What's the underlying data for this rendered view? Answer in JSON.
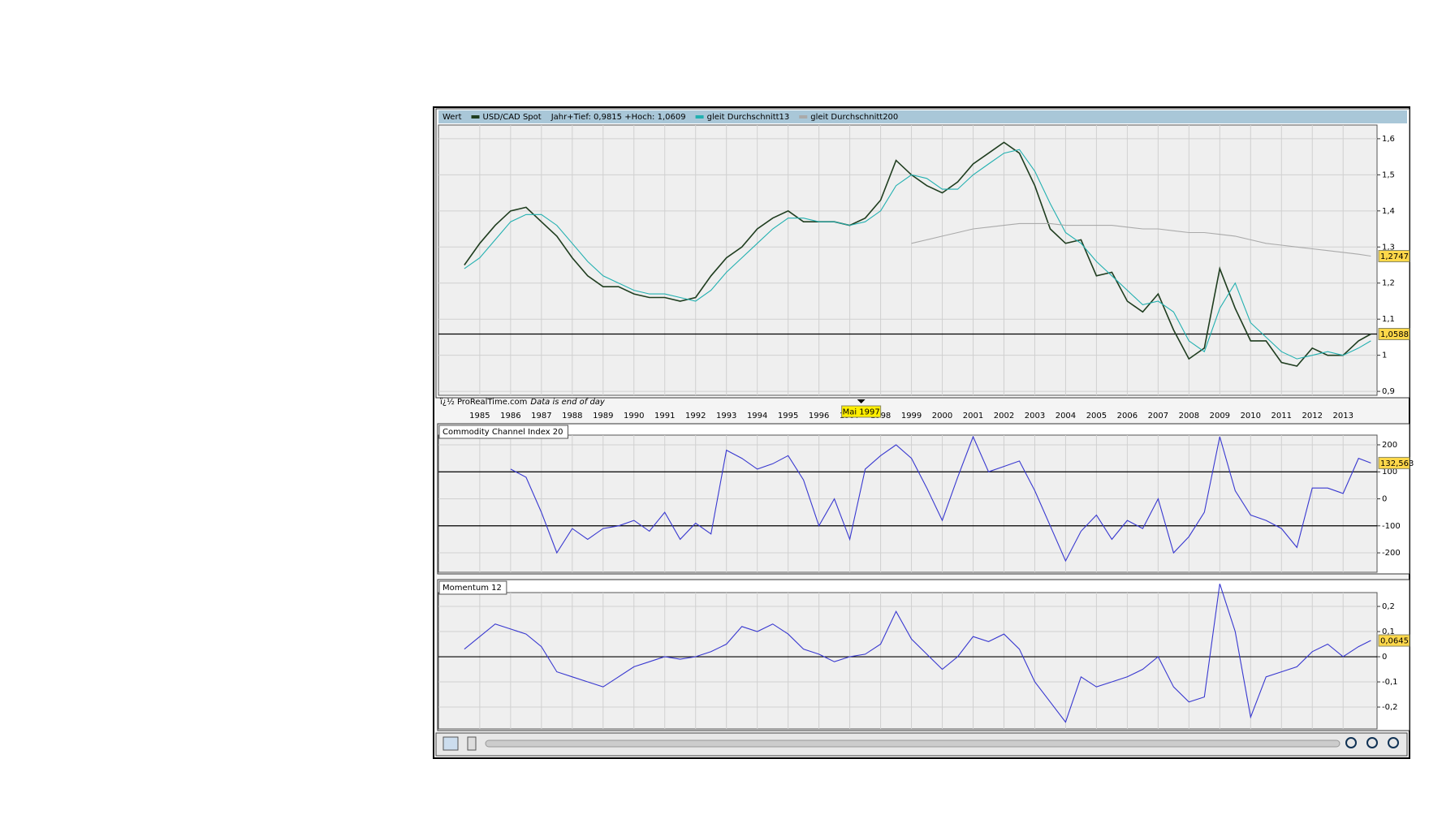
{
  "chart_data": [
    {
      "type": "line",
      "title": "Wert",
      "subtitle": "Jahr+Tief: 0,9815 +Hoch: 1,0609",
      "source": "ï¿½ ProRealTime.com",
      "note": "Data is end of day",
      "x": [
        1984.5,
        1985,
        1985.5,
        1986,
        1986.5,
        1987,
        1987.5,
        1988,
        1988.5,
        1989,
        1989.5,
        1990,
        1990.5,
        1991,
        1991.5,
        1992,
        1992.5,
        1993,
        1993.5,
        1994,
        1994.5,
        1995,
        1995.5,
        1996,
        1996.5,
        1997,
        1997.5,
        1998,
        1998.5,
        1999,
        1999.5,
        2000,
        2000.5,
        2001,
        2001.5,
        2002,
        2002.5,
        2003,
        2003.5,
        2004,
        2004.5,
        2005,
        2005.5,
        2006,
        2006.5,
        2007,
        2007.5,
        2008,
        2008.5,
        2009,
        2009.5,
        2010,
        2010.5,
        2011,
        2011.5,
        2012,
        2012.5,
        2013,
        2013.5,
        2013.9
      ],
      "series": [
        {
          "name": "USD/CAD Spot",
          "color": "#1f3d1f",
          "values": [
            1.25,
            1.31,
            1.36,
            1.4,
            1.41,
            1.37,
            1.33,
            1.27,
            1.22,
            1.19,
            1.19,
            1.17,
            1.16,
            1.16,
            1.15,
            1.16,
            1.22,
            1.27,
            1.3,
            1.35,
            1.38,
            1.4,
            1.37,
            1.37,
            1.37,
            1.36,
            1.38,
            1.43,
            1.54,
            1.5,
            1.47,
            1.45,
            1.48,
            1.53,
            1.56,
            1.59,
            1.56,
            1.47,
            1.35,
            1.31,
            1.32,
            1.22,
            1.23,
            1.15,
            1.12,
            1.17,
            1.07,
            0.99,
            1.02,
            1.24,
            1.13,
            1.04,
            1.04,
            0.98,
            0.97,
            1.02,
            1.0,
            1.0,
            1.04,
            1.0588
          ]
        },
        {
          "name": "gleit Durchschnitt13",
          "color": "#22b0b0",
          "values": [
            1.24,
            1.27,
            1.32,
            1.37,
            1.39,
            1.39,
            1.36,
            1.31,
            1.26,
            1.22,
            1.2,
            1.18,
            1.17,
            1.17,
            1.16,
            1.15,
            1.18,
            1.23,
            1.27,
            1.31,
            1.35,
            1.38,
            1.38,
            1.37,
            1.37,
            1.36,
            1.37,
            1.4,
            1.47,
            1.5,
            1.49,
            1.46,
            1.46,
            1.5,
            1.53,
            1.56,
            1.57,
            1.51,
            1.42,
            1.34,
            1.31,
            1.26,
            1.22,
            1.18,
            1.14,
            1.15,
            1.12,
            1.04,
            1.01,
            1.13,
            1.2,
            1.09,
            1.05,
            1.01,
            0.99,
            1.0,
            1.01,
            1.0,
            1.02,
            1.04
          ]
        },
        {
          "name": "gleit Durchschnitt200",
          "color": "#aaaaaa",
          "values": [
            null,
            null,
            null,
            null,
            null,
            null,
            null,
            null,
            null,
            null,
            null,
            null,
            null,
            null,
            null,
            null,
            null,
            null,
            null,
            null,
            null,
            null,
            null,
            null,
            null,
            null,
            null,
            null,
            null,
            1.31,
            1.32,
            1.33,
            1.34,
            1.35,
            1.355,
            1.36,
            1.365,
            1.365,
            1.365,
            1.36,
            1.36,
            1.36,
            1.36,
            1.355,
            1.35,
            1.35,
            1.345,
            1.34,
            1.34,
            1.335,
            1.33,
            1.32,
            1.31,
            1.305,
            1.3,
            1.295,
            1.29,
            1.285,
            1.28,
            1.2747
          ]
        }
      ],
      "xlim": [
        1983.66,
        2014.1
      ],
      "xticks": [
        1985,
        1986,
        1987,
        1988,
        1989,
        1990,
        1991,
        1992,
        1993,
        1994,
        1995,
        1996,
        1997,
        1998,
        1999,
        2000,
        2001,
        2002,
        2003,
        2004,
        2005,
        2006,
        2007,
        2008,
        2009,
        2010,
        2011,
        2012,
        2013
      ],
      "ylim": [
        0.889,
        1.638
      ],
      "yticks": [
        {
          "value": 0.9,
          "label": "0,9"
        },
        {
          "value": 1,
          "label": "1"
        },
        {
          "value": 1.1,
          "label": "1,1"
        },
        {
          "value": 1.2,
          "label": "1,2"
        },
        {
          "value": 1.3,
          "label": "1,3"
        },
        {
          "value": 1.4,
          "label": "1,4"
        },
        {
          "value": 1.5,
          "label": "1,5"
        },
        {
          "value": 1.6,
          "label": "1,6"
        }
      ],
      "hlines": [
        1.0588
      ],
      "tags": [
        {
          "value": 1.2747,
          "label": "1,2747"
        },
        {
          "value": 1.0588,
          "label": "1,0588"
        }
      ],
      "marker": {
        "x": 1997.37,
        "label": "Mai 1997"
      },
      "grid": true
    },
    {
      "type": "line",
      "title": "Commodity Channel Index 20",
      "x": [
        1984.5,
        1985,
        1985.5,
        1986,
        1986.5,
        1987,
        1987.5,
        1988,
        1988.5,
        1989,
        1989.5,
        1990,
        1990.5,
        1991,
        1991.5,
        1992,
        1992.5,
        1993,
        1993.5,
        1994,
        1994.5,
        1995,
        1995.5,
        1996,
        1996.5,
        1997,
        1997.5,
        1998,
        1998.5,
        1999,
        1999.5,
        2000,
        2000.5,
        2001,
        2001.5,
        2002,
        2002.5,
        2003,
        2003.5,
        2004,
        2004.5,
        2005,
        2005.5,
        2006,
        2006.5,
        2007,
        2007.5,
        2008,
        2008.5,
        2009,
        2009.5,
        2010,
        2010.5,
        2011,
        2011.5,
        2012,
        2012.5,
        2013,
        2013.5,
        2013.9
      ],
      "series": [
        {
          "name": "Commodity Channel Index 20",
          "color": "#3838d0",
          "values": [
            null,
            null,
            null,
            110,
            80,
            -50,
            -200,
            -110,
            -150,
            -110,
            -100,
            -80,
            -120,
            -50,
            -150,
            -90,
            -130,
            180,
            150,
            110,
            130,
            160,
            70,
            -100,
            0,
            -150,
            110,
            160,
            200,
            150,
            40,
            -80,
            80,
            230,
            100,
            120,
            140,
            30,
            -100,
            -230,
            -120,
            -60,
            -150,
            -80,
            -110,
            0,
            -200,
            -140,
            -50,
            230,
            30,
            -60,
            -80,
            -110,
            -180,
            40,
            40,
            20,
            150,
            132.563
          ]
        }
      ],
      "xlim": [
        1983.66,
        2014.1
      ],
      "ylim": [
        -272,
        236
      ],
      "yticks": [
        -200,
        -100,
        0,
        100,
        200
      ],
      "hlines": [
        100,
        -100
      ],
      "tags": [
        {
          "value": 132.563,
          "label": "132,563"
        }
      ],
      "grid": true
    },
    {
      "type": "line",
      "title": "Momentum 12",
      "x": [
        1984.5,
        1985,
        1985.5,
        1986,
        1986.5,
        1987,
        1987.5,
        1988,
        1988.5,
        1989,
        1989.5,
        1990,
        1990.5,
        1991,
        1991.5,
        1992,
        1992.5,
        1993,
        1993.5,
        1994,
        1994.5,
        1995,
        1995.5,
        1996,
        1996.5,
        1997,
        1997.5,
        1998,
        1998.5,
        1999,
        1999.5,
        2000,
        2000.5,
        2001,
        2001.5,
        2002,
        2002.5,
        2003,
        2003.5,
        2004,
        2004.5,
        2005,
        2005.5,
        2006,
        2006.5,
        2007,
        2007.5,
        2008,
        2008.5,
        2009,
        2009.5,
        2010,
        2010.5,
        2011,
        2011.5,
        2012,
        2012.5,
        2013,
        2013.5,
        2013.9
      ],
      "series": [
        {
          "name": "Momentum 12",
          "color": "#3838d0",
          "values": [
            0.03,
            0.08,
            0.13,
            0.11,
            0.09,
            0.04,
            -0.06,
            -0.08,
            -0.1,
            -0.12,
            -0.08,
            -0.04,
            -0.02,
            0.0,
            -0.01,
            0.0,
            0.02,
            0.05,
            0.12,
            0.1,
            0.13,
            0.09,
            0.03,
            0.01,
            -0.02,
            0.0,
            0.01,
            0.05,
            0.18,
            0.07,
            0.01,
            -0.05,
            0.0,
            0.08,
            0.06,
            0.09,
            0.03,
            -0.1,
            -0.18,
            -0.26,
            -0.08,
            -0.12,
            -0.1,
            -0.08,
            -0.05,
            0.0,
            -0.12,
            -0.18,
            -0.16,
            0.29,
            0.1,
            -0.24,
            -0.08,
            -0.06,
            -0.04,
            0.02,
            0.05,
            0.0,
            0.04,
            0.0645
          ]
        }
      ],
      "xlim": [
        1983.66,
        2014.1
      ],
      "ylim": [
        -0.287,
        0.255
      ],
      "yticks": [
        {
          "value": -0.2,
          "label": "-0,2"
        },
        {
          "value": -0.1,
          "label": "-0,1"
        },
        0,
        {
          "value": 0.1,
          "label": "0,1"
        },
        {
          "value": 0.2,
          "label": "0,2"
        }
      ],
      "hlines": [
        0
      ],
      "tags": [
        {
          "value": 0.0645,
          "label": "0,0645"
        }
      ],
      "grid": true
    }
  ]
}
